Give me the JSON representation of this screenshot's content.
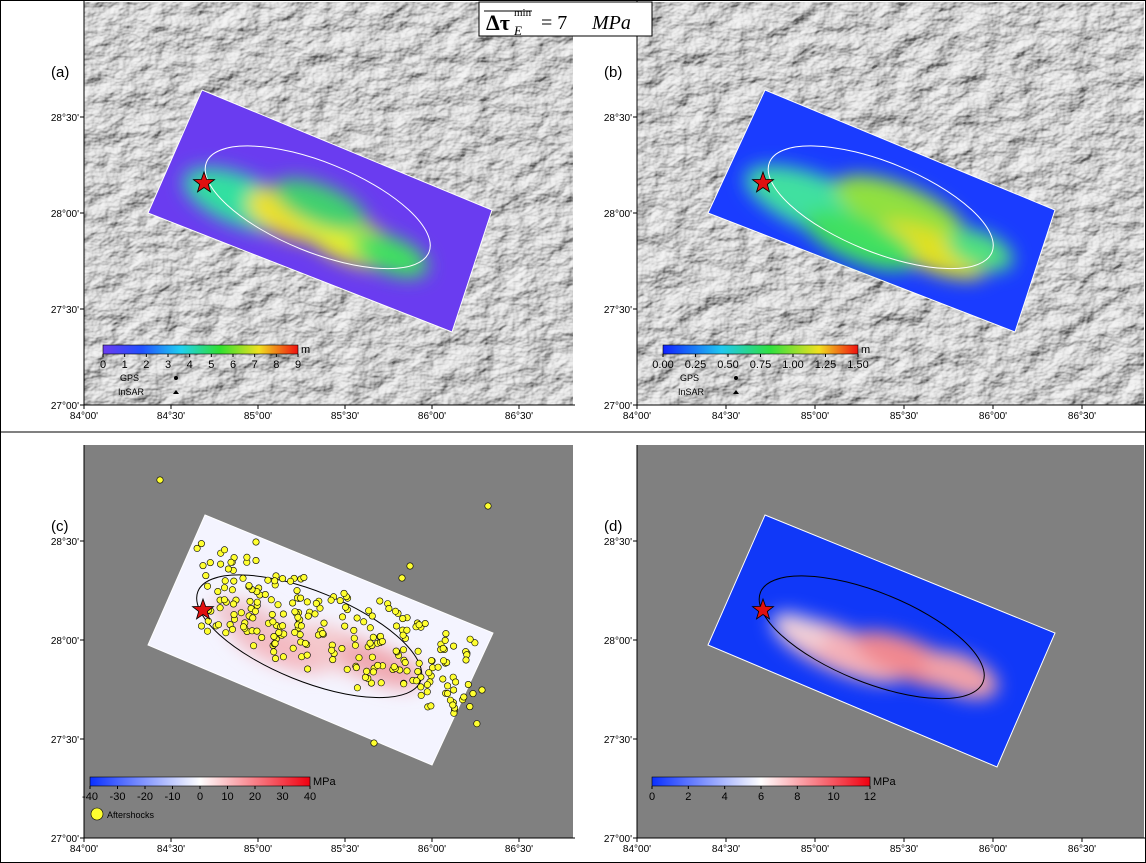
{
  "title": {
    "symbol": "Δτ",
    "subscript": "E",
    "superscript": "min",
    "value": "= 7",
    "unit": "MPa"
  },
  "panels": [
    {
      "label": "(a)",
      "yticks": [
        "28°30'",
        "28°00'",
        "27°30'",
        "27°00'"
      ],
      "xticks": [
        "84°00'",
        "84°30'",
        "85°00'",
        "85°30'",
        "86°00'",
        "86°30'"
      ],
      "colorbar": {
        "ticks": [
          "0",
          "1",
          "2",
          "3",
          "4",
          "5",
          "6",
          "7",
          "8",
          "9"
        ],
        "unit": "m"
      },
      "legend": [
        "GPS",
        "InSAR"
      ]
    },
    {
      "label": "(b)",
      "yticks": [
        "28°30'",
        "28°00'",
        "27°30'",
        "27°00'"
      ],
      "xticks": [
        "84°00'",
        "84°30'",
        "85°00'",
        "85°30'",
        "86°00'",
        "86°30'"
      ],
      "colorbar": {
        "ticks": [
          "0.00",
          "0.25",
          "0.50",
          "0.75",
          "1.00",
          "1.25",
          "1.50"
        ],
        "unit": "m"
      },
      "legend": [
        "GPS",
        "InSAR"
      ]
    },
    {
      "label": "(c)",
      "yticks": [
        "28°30'",
        "28°00'",
        "27°30'",
        "27°00'"
      ],
      "xticks": [
        "84°00'",
        "84°30'",
        "85°00'",
        "85°30'",
        "86°00'",
        "86°30'"
      ],
      "colorbar": {
        "ticks": [
          "-40",
          "-30",
          "-20",
          "-10",
          "0",
          "10",
          "20",
          "30",
          "40"
        ],
        "unit": "MPa"
      },
      "legend": [
        "Aftershocks"
      ]
    },
    {
      "label": "(d)",
      "yticks": [
        "28°30'",
        "28°00'",
        "27°30'",
        "27°00'"
      ],
      "xticks": [
        "84°00'",
        "84°30'",
        "85°00'",
        "85°30'",
        "86°00'",
        "86°30'"
      ],
      "colorbar": {
        "ticks": [
          "0",
          "2",
          "4",
          "6",
          "8",
          "10",
          "12"
        ],
        "unit": "MPa"
      },
      "legend": []
    }
  ]
}
